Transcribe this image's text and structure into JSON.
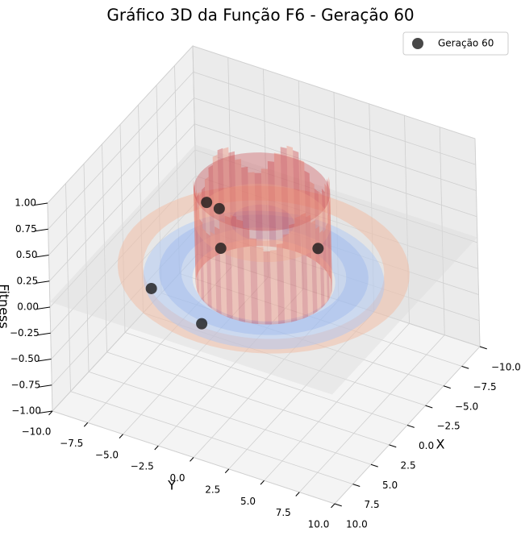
{
  "chart_data": {
    "type": "scatter3d",
    "title": "Gráfico 3D da Função F6 - Geração 60",
    "xlabel": "X",
    "ylabel": "Y",
    "zlabel": "Fitness",
    "xlim": [
      -10,
      10
    ],
    "ylim": [
      -10,
      10
    ],
    "zlim": [
      -1,
      1
    ],
    "xticks": [
      {
        "value": -10,
        "label": "−10.0"
      },
      {
        "value": -7.5,
        "label": "−7.5"
      },
      {
        "value": -5,
        "label": "−5.0"
      },
      {
        "value": -2.5,
        "label": "−2.5"
      },
      {
        "value": 0,
        "label": "0.0"
      },
      2.5,
      {
        "value": 5,
        "label": "5.0"
      },
      7.5,
      {
        "value": 10,
        "label": "10.0"
      }
    ],
    "yticks": [
      {
        "value": -10,
        "label": "−10.0"
      },
      {
        "value": -7.5,
        "label": "−7.5"
      },
      {
        "value": -5,
        "label": "−5.0"
      },
      {
        "value": -2.5,
        "label": "−2.5"
      },
      {
        "value": 0,
        "label": "0.0"
      },
      2.5,
      {
        "value": 5,
        "label": "5.0"
      },
      7.5,
      {
        "value": 10,
        "label": "10.0"
      }
    ],
    "zticks": [
      {
        "value": -1,
        "label": "−1.00"
      },
      {
        "value": -0.75,
        "label": "−0.75"
      },
      {
        "value": -0.5,
        "label": "−0.50"
      },
      {
        "value": -0.25,
        "label": "−0.25"
      },
      {
        "value": 0,
        "label": "0.00"
      },
      0.25,
      {
        "value": 0.5,
        "label": "0.50"
      },
      0.75,
      {
        "value": 1,
        "label": "1.00"
      }
    ],
    "grid": true,
    "legend_position": "upper right",
    "series": [
      {
        "name": "Geração 60",
        "color": "#1a1a1a",
        "x": [
          -0.1,
          -1.3,
          0.3,
          0.5,
          0.8,
          -2.3
        ],
        "y": [
          -8.1,
          -5.2,
          -3.8,
          -2.8,
          -2.6,
          2.7
        ],
        "z": [
          -0.5,
          -0.8,
          0.55,
          0.55,
          0.2,
          0.2
        ]
      }
    ]
  }
}
